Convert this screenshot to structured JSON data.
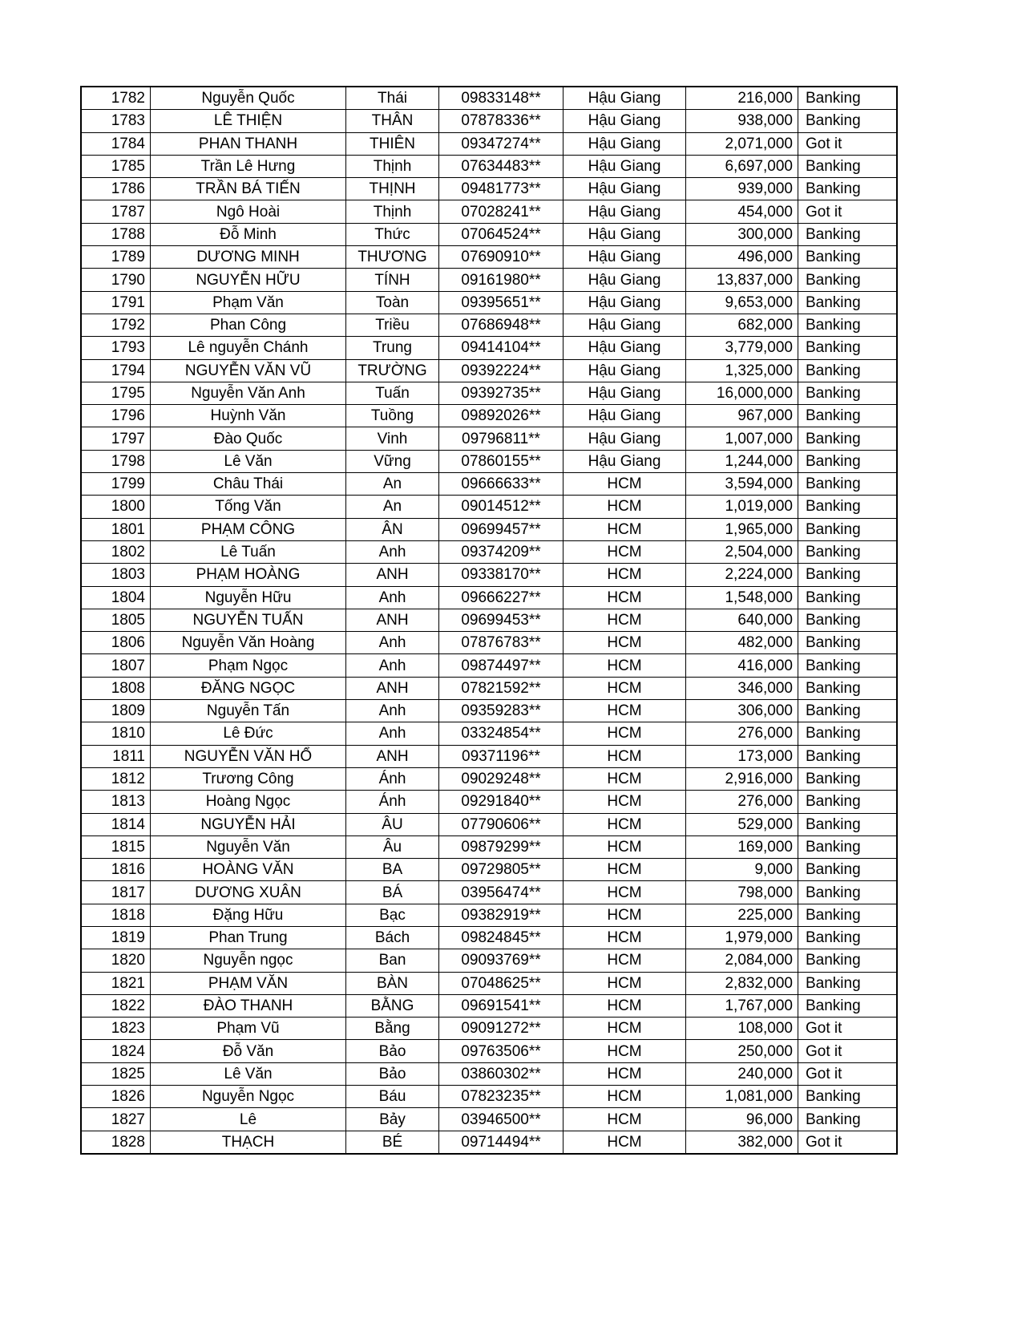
{
  "table": {
    "rows": [
      [
        "1782",
        "Nguyễn Quốc",
        "Thái",
        "09833148**",
        "Hậu Giang",
        "216,000",
        "Banking"
      ],
      [
        "1783",
        "LÊ THIỆN",
        "THÂN",
        "07878336**",
        "Hậu Giang",
        "938,000",
        "Banking"
      ],
      [
        "1784",
        "PHAN THANH",
        "THIÊN",
        "09347274**",
        "Hậu Giang",
        "2,071,000",
        "Got it"
      ],
      [
        "1785",
        "Trần Lê Hưng",
        "Thịnh",
        "07634483**",
        "Hậu Giang",
        "6,697,000",
        "Banking"
      ],
      [
        "1786",
        "TRẦN BÁ TIẾN",
        "THỊNH",
        "09481773**",
        "Hậu Giang",
        "939,000",
        "Banking"
      ],
      [
        "1787",
        "Ngô Hoài",
        "Thịnh",
        "07028241**",
        "Hậu Giang",
        "454,000",
        "Got it"
      ],
      [
        "1788",
        "Đỗ Minh",
        "Thức",
        "07064524**",
        "Hậu Giang",
        "300,000",
        "Banking"
      ],
      [
        "1789",
        "DƯƠNG MINH",
        "THƯƠNG",
        "07690910**",
        "Hậu Giang",
        "496,000",
        "Banking"
      ],
      [
        "1790",
        "NGUYỄN HỮU",
        "TÍNH",
        "09161980**",
        "Hậu Giang",
        "13,837,000",
        "Banking"
      ],
      [
        "1791",
        "Phạm Văn",
        "Toàn",
        "09395651**",
        "Hậu Giang",
        "9,653,000",
        "Banking"
      ],
      [
        "1792",
        "Phan Công",
        "Triều",
        "07686948**",
        "Hậu Giang",
        "682,000",
        "Banking"
      ],
      [
        "1793",
        "Lê nguyễn Chánh",
        "Trung",
        "09414104**",
        "Hậu Giang",
        "3,779,000",
        "Banking"
      ],
      [
        "1794",
        "NGUYỄN VĂN VŨ",
        "TRƯỜNG",
        "09392224**",
        "Hậu Giang",
        "1,325,000",
        "Banking"
      ],
      [
        "1795",
        "Nguyễn Văn Anh",
        "Tuấn",
        "09392735**",
        "Hậu Giang",
        "16,000,000",
        "Banking"
      ],
      [
        "1796",
        "Huỳnh Văn",
        "Tuồng",
        "09892026**",
        "Hậu Giang",
        "967,000",
        "Banking"
      ],
      [
        "1797",
        "Đào Quốc",
        "Vinh",
        "09796811**",
        "Hậu Giang",
        "1,007,000",
        "Banking"
      ],
      [
        "1798",
        "Lê Văn",
        "Vững",
        "07860155**",
        "Hậu Giang",
        "1,244,000",
        "Banking"
      ],
      [
        "1799",
        "Châu Thái",
        "An",
        "09666633**",
        "HCM",
        "3,594,000",
        "Banking"
      ],
      [
        "1800",
        "Tống Văn",
        "An",
        "09014512**",
        "HCM",
        "1,019,000",
        "Banking"
      ],
      [
        "1801",
        "PHẠM CÔNG",
        "ÂN",
        "09699457**",
        "HCM",
        "1,965,000",
        "Banking"
      ],
      [
        "1802",
        "Lê Tuấn",
        "Anh",
        "09374209**",
        "HCM",
        "2,504,000",
        "Banking"
      ],
      [
        "1803",
        "PHẠM HOÀNG",
        "ANH",
        "09338170**",
        "HCM",
        "2,224,000",
        "Banking"
      ],
      [
        "1804",
        "Nguyễn Hữu",
        "Anh",
        "09666227**",
        "HCM",
        "1,548,000",
        "Banking"
      ],
      [
        "1805",
        "NGUYỄN TUẤN",
        "ANH",
        "09699453**",
        "HCM",
        "640,000",
        "Banking"
      ],
      [
        "1806",
        "Nguyễn Văn Hoàng",
        "Anh",
        "07876783**",
        "HCM",
        "482,000",
        "Banking"
      ],
      [
        "1807",
        "Phạm Ngọc",
        "Anh",
        "09874497**",
        "HCM",
        "416,000",
        "Banking"
      ],
      [
        "1808",
        "ĐĂNG NGỌC",
        "ANH",
        "07821592**",
        "HCM",
        "346,000",
        "Banking"
      ],
      [
        "1809",
        "Nguyễn Tấn",
        "Anh",
        "09359283**",
        "HCM",
        "306,000",
        "Banking"
      ],
      [
        "1810",
        "Lê Đức",
        "Anh",
        "03324854**",
        "HCM",
        "276,000",
        "Banking"
      ],
      [
        "1811",
        "NGUYỄN VĂN HỔ",
        "ANH",
        "09371196**",
        "HCM",
        "173,000",
        "Banking"
      ],
      [
        "1812",
        "Trương Công",
        "Ánh",
        "09029248**",
        "HCM",
        "2,916,000",
        "Banking"
      ],
      [
        "1813",
        "Hoàng Ngọc",
        "Ánh",
        "09291840**",
        "HCM",
        "276,000",
        "Banking"
      ],
      [
        "1814",
        "NGUYỄN HẢI",
        "ÂU",
        "07790606**",
        "HCM",
        "529,000",
        "Banking"
      ],
      [
        "1815",
        "Nguyễn Văn",
        "Âu",
        "09879299**",
        "HCM",
        "169,000",
        "Banking"
      ],
      [
        "1816",
        "HOÀNG VĂN",
        "BA",
        "09729805**",
        "HCM",
        "9,000",
        "Banking"
      ],
      [
        "1817",
        "DƯƠNG XUÂN",
        "BÁ",
        "03956474**",
        "HCM",
        "798,000",
        "Banking"
      ],
      [
        "1818",
        "Đặng Hữu",
        "Bạc",
        "09382919**",
        "HCM",
        "225,000",
        "Banking"
      ],
      [
        "1819",
        "Phan Trung",
        "Bách",
        "09824845**",
        "HCM",
        "1,979,000",
        "Banking"
      ],
      [
        "1820",
        "Nguyễn ngọc",
        "Ban",
        "09093769**",
        "HCM",
        "2,084,000",
        "Banking"
      ],
      [
        "1821",
        "PHẠM VĂN",
        "BÀN",
        "07048625**",
        "HCM",
        "2,832,000",
        "Banking"
      ],
      [
        "1822",
        "ĐÀO THANH",
        "BẰNG",
        "09691541**",
        "HCM",
        "1,767,000",
        "Banking"
      ],
      [
        "1823",
        "Phạm Vũ",
        "Bằng",
        "09091272**",
        "HCM",
        "108,000",
        "Got it"
      ],
      [
        "1824",
        "Đỗ Văn",
        "Bảo",
        "09763506**",
        "HCM",
        "250,000",
        "Got it"
      ],
      [
        "1825",
        "Lê Văn",
        "Bảo",
        "03860302**",
        "HCM",
        "240,000",
        "Got it"
      ],
      [
        "1826",
        "Nguyễn Ngọc",
        "Báu",
        "07823235**",
        "HCM",
        "1,081,000",
        "Banking"
      ],
      [
        "1827",
        "Lê",
        "Bảy",
        "03946500**",
        "HCM",
        "96,000",
        "Banking"
      ],
      [
        "1828",
        "THẠCH",
        "BÉ",
        "09714494**",
        "HCM",
        "382,000",
        "Got it"
      ]
    ]
  }
}
